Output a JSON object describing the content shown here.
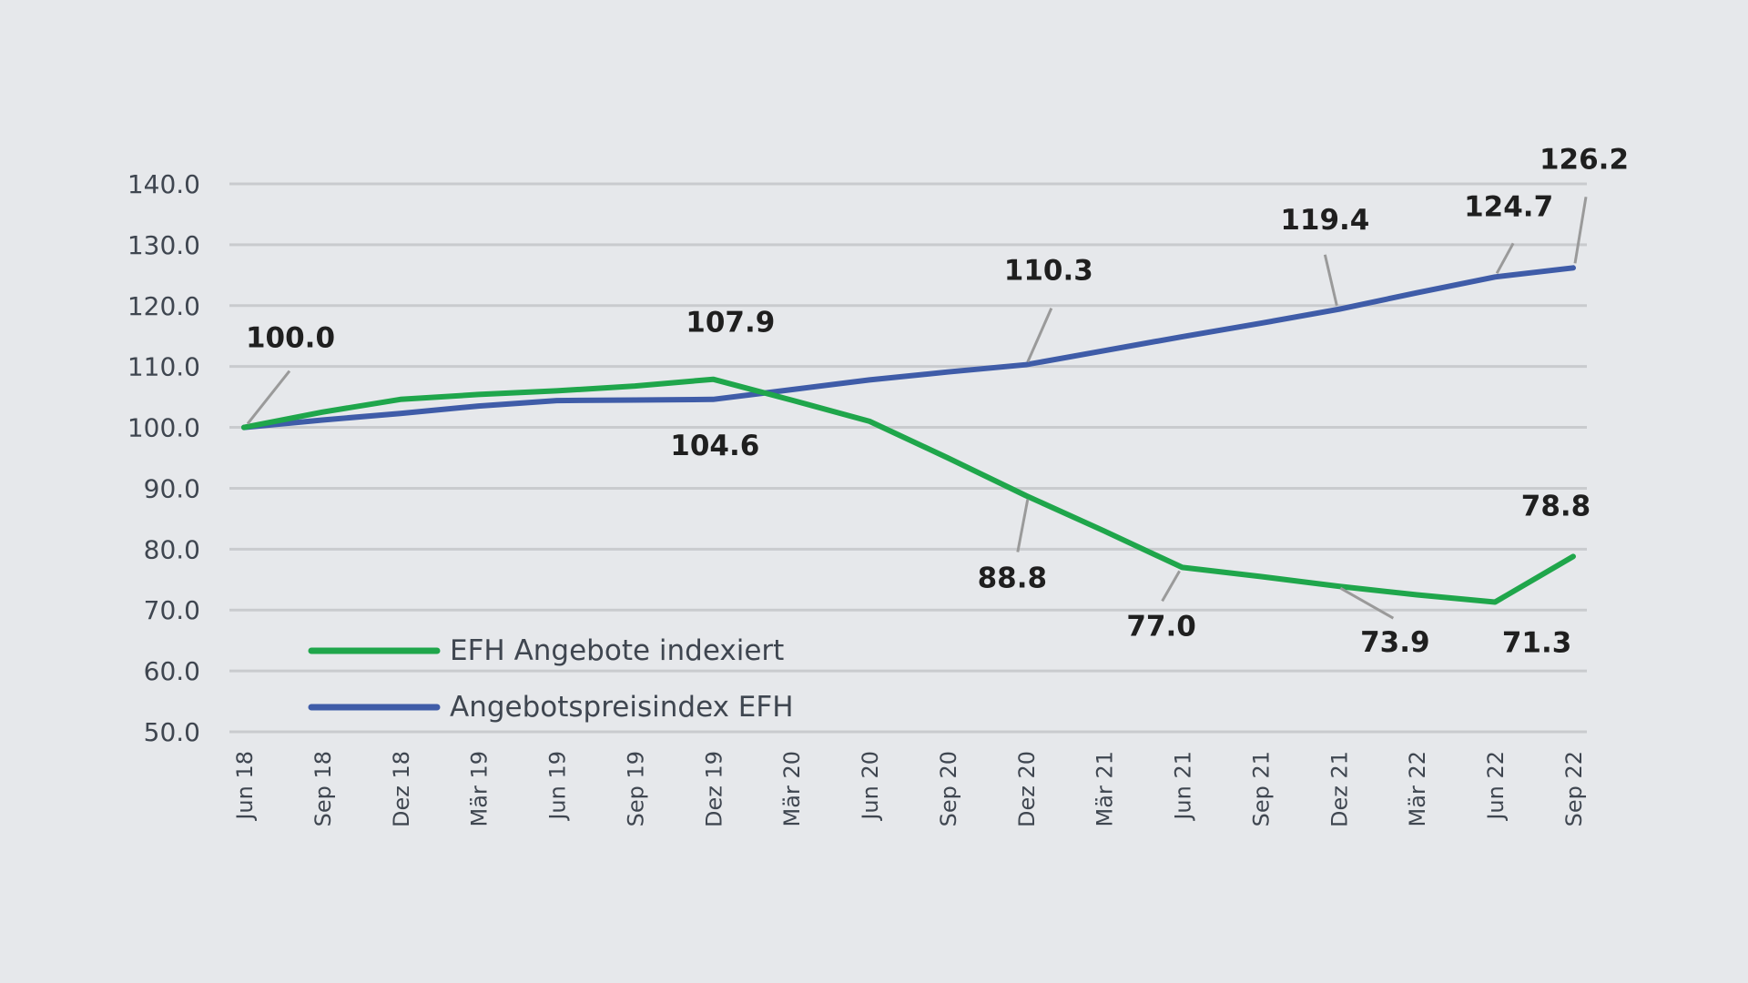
{
  "chart_data": {
    "type": "line",
    "title": "",
    "xlabel": "",
    "ylabel": "",
    "categories": [
      "Jun 18",
      "Sep 18",
      "Dez 18",
      "Mär 19",
      "Jun 19",
      "Sep 19",
      "Dez 19",
      "Mär 20",
      "Jun 20",
      "Sep 20",
      "Dez 20",
      "Mär 21",
      "Jun 21",
      "Sep 21",
      "Dez 21",
      "Mär 22",
      "Jun 22",
      "Sep 22"
    ],
    "ylim": [
      50,
      140
    ],
    "yticks": [
      "140.0",
      "130.0",
      "120.0",
      "110.0",
      "100.0",
      "90.0",
      "80.0",
      "70.0",
      "60.0",
      "50.0"
    ],
    "grid": true,
    "legend_position": "bottom-left",
    "series": [
      {
        "name": "EFH Angebote indexiert",
        "color": "#1fa64b",
        "values": [
          100.0,
          102.5,
          104.6,
          105.4,
          106.0,
          106.8,
          107.9,
          104.5,
          101.0,
          95.0,
          88.8,
          83.0,
          77.0,
          75.5,
          73.9,
          72.5,
          71.3,
          78.8
        ]
      },
      {
        "name": "Angebotspreisindex EFH",
        "color": "#3f5ca8",
        "values": [
          100.0,
          101.2,
          102.3,
          103.5,
          104.4,
          104.5,
          104.6,
          106.2,
          107.8,
          109.1,
          110.3,
          112.6,
          114.9,
          117.1,
          119.4,
          122.1,
          124.7,
          126.2
        ]
      }
    ],
    "data_labels": [
      {
        "series": 0,
        "index": 0,
        "text": "100.0"
      },
      {
        "series": 0,
        "index": 6,
        "text": "107.9"
      },
      {
        "series": 1,
        "index": 6,
        "text": "104.6"
      },
      {
        "series": 1,
        "index": 10,
        "text": "110.3"
      },
      {
        "series": 0,
        "index": 10,
        "text": "88.8"
      },
      {
        "series": 0,
        "index": 12,
        "text": "77.0"
      },
      {
        "series": 0,
        "index": 14,
        "text": "73.9"
      },
      {
        "series": 0,
        "index": 16,
        "text": "71.3"
      },
      {
        "series": 0,
        "index": 17,
        "text": "78.8"
      },
      {
        "series": 1,
        "index": 14,
        "text": "119.4"
      },
      {
        "series": 1,
        "index": 16,
        "text": "124.7"
      },
      {
        "series": 1,
        "index": 17,
        "text": "126.2"
      }
    ]
  }
}
